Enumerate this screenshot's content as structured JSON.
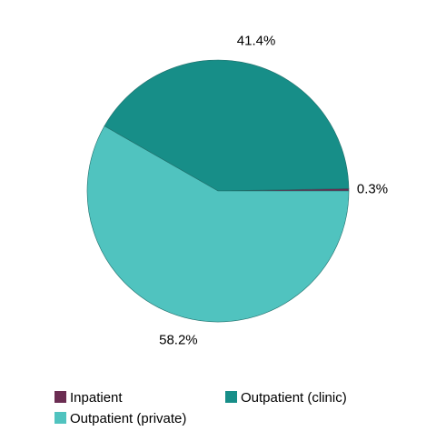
{
  "chart_data": {
    "type": "pie",
    "categories": [
      "Inpatient",
      "Outpatient (clinic)",
      "Outpatient (private)"
    ],
    "values": [
      0.3,
      41.4,
      58.2
    ],
    "value_labels": [
      "0.3%",
      "41.4%",
      "58.2%"
    ],
    "colors": [
      "#6b2d52",
      "#178e88",
      "#50c3bf"
    ]
  }
}
